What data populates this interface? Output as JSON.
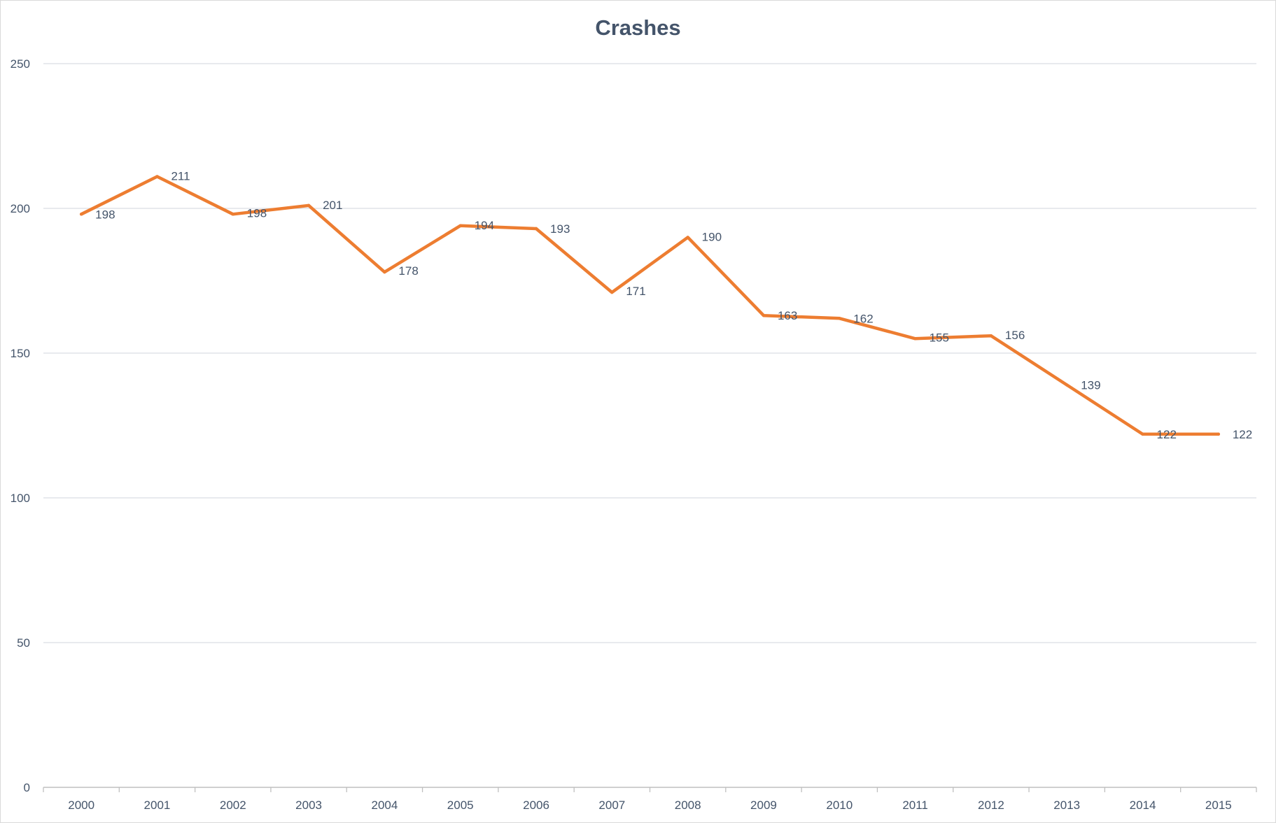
{
  "chart_data": {
    "type": "line",
    "title": "Crashes",
    "xlabel": "",
    "ylabel": "",
    "categories": [
      "2000",
      "2001",
      "2002",
      "2003",
      "2004",
      "2005",
      "2006",
      "2007",
      "2008",
      "2009",
      "2010",
      "2011",
      "2012",
      "2013",
      "2014",
      "2015"
    ],
    "series": [
      {
        "values": [
          198,
          211,
          198,
          201,
          178,
          194,
          193,
          171,
          190,
          163,
          162,
          155,
          156,
          139,
          122,
          122
        ]
      }
    ],
    "ylim": [
      0,
      250
    ],
    "yticks": [
      0,
      50,
      100,
      150,
      200,
      250
    ],
    "grid": true,
    "legend": "none",
    "data_labels": true,
    "colors": {
      "line": "#ed7d31",
      "grid": "#d9dde3",
      "text": "#44546a",
      "axis": "#bfbfbf"
    }
  }
}
